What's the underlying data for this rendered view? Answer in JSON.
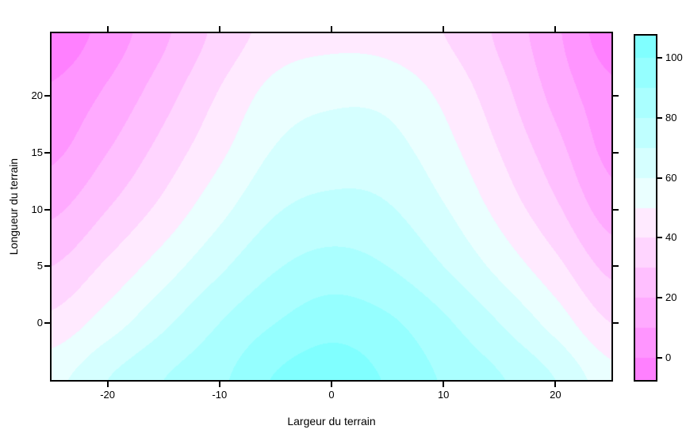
{
  "figure": {
    "background": "#ffffff",
    "axis_color": "#000000",
    "text_color": "#000000"
  },
  "chart_data": {
    "type": "heatmap",
    "subtype": "filled-contour",
    "title": "",
    "xlabel": "Largeur du terrain",
    "ylabel": "Longueur du terrain",
    "xlim": [
      -25,
      25
    ],
    "ylim": [
      -5,
      25.5
    ],
    "zlim": [
      -7.5,
      107.5
    ],
    "x_ticks": [
      -20,
      -10,
      0,
      10,
      20
    ],
    "y_ticks": [
      0,
      5,
      10,
      15,
      20
    ],
    "grid_on": false,
    "levels": [
      -10,
      0,
      10,
      20,
      30,
      40,
      50,
      60,
      70,
      80,
      90,
      100,
      110
    ],
    "palette": [
      "#FF80FF",
      "#FF95FF",
      "#FFAAFF",
      "#FFBFFF",
      "#FFD5FF",
      "#FFEAFF",
      "#EAFFFF",
      "#D5FFFF",
      "#BFFFFF",
      "#AAFFFF",
      "#95FFFF",
      "#80FFFF"
    ],
    "grid_x": [
      -25,
      -20,
      -15,
      -10,
      -5,
      0,
      5,
      10,
      15,
      20,
      25
    ],
    "grid_y": [
      -5,
      0,
      5,
      10,
      15,
      20,
      25.5
    ],
    "z": [
      [
        57,
        70,
        80,
        88,
        101,
        106,
        99,
        89,
        81,
        70,
        54
      ],
      [
        43,
        55,
        68,
        80,
        90,
        96,
        92,
        82,
        70,
        56,
        40
      ],
      [
        30,
        42,
        55,
        68,
        79,
        84,
        80,
        70,
        57,
        43,
        27
      ],
      [
        18,
        30,
        43,
        57,
        69,
        73,
        71,
        61,
        47,
        32,
        15
      ],
      [
        8,
        20,
        34,
        48,
        61,
        65,
        64,
        54,
        40,
        24,
        7
      ],
      [
        2,
        12,
        26,
        41,
        54,
        58,
        57,
        48,
        34,
        17,
        3
      ],
      [
        -7,
        4,
        18,
        33,
        44,
        47,
        46,
        40,
        28,
        12,
        -6
      ]
    ],
    "legend": {
      "position": "right",
      "ticks": [
        0,
        20,
        40,
        60,
        80,
        100
      ]
    }
  }
}
